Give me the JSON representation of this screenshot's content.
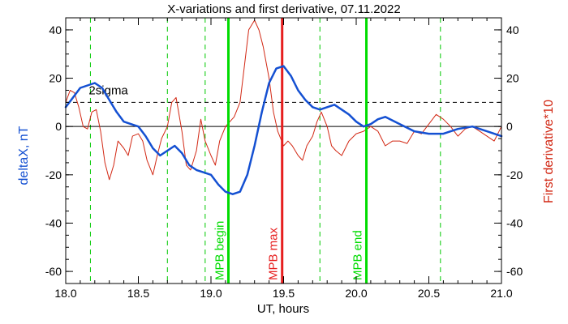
{
  "chart_data": {
    "type": "line",
    "title": "X-variations and first derivative, 07.11.2022",
    "xlabel": "UT, hours",
    "ylabel_left": "deltaX, nT",
    "ylabel_right": "First derivative*10",
    "xlim": [
      18.0,
      21.0
    ],
    "ylim": [
      -65,
      45
    ],
    "x_ticks": [
      "18.0",
      "18.5",
      "19.0",
      "19.5",
      "20.0",
      "20.5",
      "21.0"
    ],
    "y_ticks": [
      "-60",
      "-40",
      "-20",
      "0",
      "20",
      "40"
    ],
    "threshold": {
      "label": "2sigma",
      "value": 10
    },
    "colors": {
      "deltaX": "#1450d2",
      "derivative": "#d22814",
      "marker_green": "#00dc00",
      "marker_red": "#e61e1e",
      "dashed_green": "#00c800"
    },
    "dashed_markers": [
      18.17,
      18.7,
      18.96,
      19.75,
      20.58,
      21.0
    ],
    "event_markers": [
      {
        "label": "MPB begin",
        "x": 19.12,
        "color": "#00dc00"
      },
      {
        "label": "MPB max",
        "x": 19.49,
        "color": "#e61e1e"
      },
      {
        "label": "MPB end",
        "x": 20.07,
        "color": "#00dc00"
      }
    ],
    "series": [
      {
        "name": "deltaX",
        "x": [
          18.0,
          18.05,
          18.1,
          18.15,
          18.2,
          18.25,
          18.3,
          18.35,
          18.4,
          18.45,
          18.5,
          18.55,
          18.6,
          18.65,
          18.7,
          18.75,
          18.8,
          18.85,
          18.9,
          18.95,
          19.0,
          19.05,
          19.1,
          19.15,
          19.2,
          19.25,
          19.3,
          19.35,
          19.4,
          19.45,
          19.5,
          19.55,
          19.6,
          19.65,
          19.7,
          19.75,
          19.8,
          19.85,
          19.9,
          19.95,
          20.0,
          20.05,
          20.1,
          20.15,
          20.2,
          20.3,
          20.4,
          20.5,
          20.6,
          20.7,
          20.8,
          20.9,
          21.0
        ],
        "values": [
          8,
          12,
          16,
          17,
          18,
          16,
          11,
          6,
          2,
          1,
          0,
          -4,
          -9,
          -12,
          -10,
          -8,
          -11,
          -16,
          -18,
          -19,
          -20,
          -24,
          -27,
          -28,
          -27,
          -20,
          -8,
          6,
          18,
          24,
          25,
          21,
          15,
          11,
          8,
          7,
          8,
          9,
          7,
          5,
          2,
          0,
          1,
          3,
          4,
          1,
          -2,
          -3,
          -3,
          -1,
          0,
          -2,
          -4
        ]
      },
      {
        "name": "First derivative*10",
        "x": [
          18.0,
          18.03,
          18.06,
          18.09,
          18.12,
          18.15,
          18.18,
          18.21,
          18.24,
          18.27,
          18.3,
          18.33,
          18.36,
          18.4,
          18.43,
          18.46,
          18.5,
          18.53,
          18.56,
          18.6,
          18.63,
          18.66,
          18.7,
          18.73,
          18.76,
          18.8,
          18.83,
          18.86,
          18.9,
          18.93,
          18.96,
          19.0,
          19.03,
          19.06,
          19.1,
          19.13,
          19.16,
          19.2,
          19.23,
          19.26,
          19.3,
          19.33,
          19.36,
          19.4,
          19.43,
          19.46,
          19.5,
          19.53,
          19.56,
          19.6,
          19.63,
          19.66,
          19.7,
          19.73,
          19.76,
          19.8,
          19.83,
          19.86,
          19.9,
          19.95,
          20.0,
          20.05,
          20.1,
          20.15,
          20.2,
          20.25,
          20.3,
          20.35,
          20.4,
          20.45,
          20.5,
          20.55,
          20.6,
          20.65,
          20.7,
          20.75,
          20.8,
          20.85,
          20.9,
          20.95,
          21.0
        ],
        "values": [
          10,
          15,
          14,
          8,
          0,
          -1,
          6,
          7,
          -2,
          -15,
          -22,
          -16,
          -6,
          -9,
          -12,
          -4,
          -3,
          -6,
          -14,
          -20,
          -12,
          -5,
          0,
          10,
          12,
          -2,
          -16,
          -18,
          -10,
          3,
          -6,
          -12,
          -16,
          -6,
          0,
          2,
          4,
          10,
          25,
          40,
          44,
          40,
          33,
          20,
          6,
          -2,
          -8,
          -6,
          -8,
          -12,
          -14,
          -8,
          -4,
          2,
          6,
          0,
          -8,
          -10,
          -12,
          -6,
          -3,
          -2,
          0,
          -2,
          -8,
          -6,
          -6,
          -7,
          -2,
          -3,
          1,
          5,
          3,
          0,
          -4,
          -1,
          0,
          -2,
          -4,
          -6,
          0
        ]
      }
    ],
    "zero_line": 0
  }
}
